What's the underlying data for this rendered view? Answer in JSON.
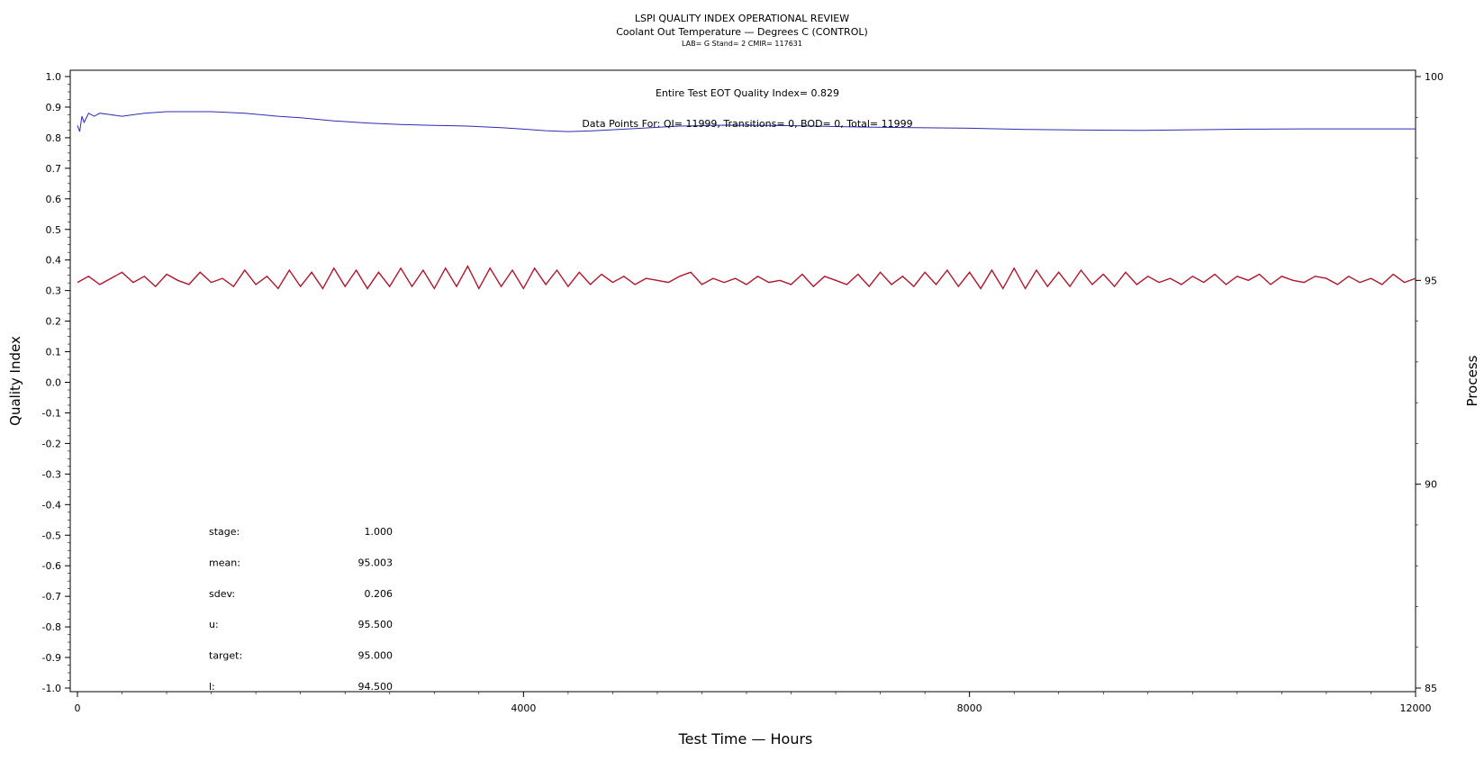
{
  "header": {
    "title": "LSPI QUALITY INDEX OPERATIONAL REVIEW",
    "subtitle": "Coolant Out Temperature — Degrees C (CONTROL)",
    "lab_line": "LAB= G Stand= 2 CMIR= 117631"
  },
  "chart_data": {
    "type": "line",
    "xlabel": "Test Time — Hours",
    "ylabel": "Quality Index",
    "y2label": "Process",
    "xlim": [
      0,
      12000
    ],
    "ylim": [
      -1.0,
      1.0
    ],
    "y2lim": [
      85,
      100
    ],
    "x_ticks": [
      "0",
      "4000",
      "8000",
      "12000"
    ],
    "y_ticks": [
      "1.0",
      "0.9",
      "0.8",
      "0.7",
      "0.6",
      "0.5",
      "0.4",
      "0.3",
      "0.2",
      "0.1",
      "0.0",
      "-0.1",
      "-0.2",
      "-0.3",
      "-0.4",
      "-0.5",
      "-0.6",
      "-0.7",
      "-0.8",
      "-0.9",
      "-1.0"
    ],
    "y2_ticks": [
      "100",
      "95",
      "90",
      "85"
    ],
    "annotations": {
      "eot_index": "Entire Test EOT Quality Index=    0.829",
      "data_points": "Data Points For: QI= 11999, Transitions=      0, BOD=      0, Total= 11999"
    },
    "stats": [
      {
        "label": "stage:",
        "value": "1.000"
      },
      {
        "label": "mean:",
        "value": "95.003"
      },
      {
        "label": "sdev:",
        "value": "0.206"
      },
      {
        "label": "u:",
        "value": "95.500"
      },
      {
        "label": "target:",
        "value": "95.000"
      },
      {
        "label": "l:",
        "value": "94.500"
      }
    ],
    "series": [
      {
        "axis": "left",
        "color": "#2c2cb4",
        "x": [
          0,
          20,
          40,
          60,
          100,
          150,
          200,
          300,
          400,
          600,
          800,
          1000,
          1200,
          1500,
          1800,
          2000,
          2300,
          2600,
          2900,
          3200,
          3500,
          3800,
          4000,
          4200,
          4400,
          4600,
          5000,
          5400,
          5800,
          6200,
          6600,
          7000,
          7500,
          8000,
          8500,
          9000,
          9500,
          10000,
          10500,
          11000,
          11500,
          12000
        ],
        "y": [
          0.84,
          0.82,
          0.87,
          0.85,
          0.88,
          0.87,
          0.88,
          0.875,
          0.87,
          0.88,
          0.885,
          0.885,
          0.885,
          0.88,
          0.87,
          0.865,
          0.855,
          0.848,
          0.843,
          0.84,
          0.838,
          0.833,
          0.828,
          0.823,
          0.82,
          0.822,
          0.83,
          0.838,
          0.841,
          0.84,
          0.838,
          0.835,
          0.833,
          0.831,
          0.827,
          0.825,
          0.824,
          0.826,
          0.828,
          0.829,
          0.829,
          0.829
        ]
      },
      {
        "axis": "right",
        "color": "#b0152a",
        "x": [
          0,
          100,
          200,
          300,
          400,
          500,
          600,
          700,
          800,
          900,
          1000,
          1100,
          1200,
          1300,
          1400,
          1500,
          1600,
          1700,
          1800,
          1900,
          2000,
          2100,
          2200,
          2300,
          2400,
          2500,
          2600,
          2700,
          2800,
          2900,
          3000,
          3100,
          3200,
          3300,
          3400,
          3500,
          3600,
          3700,
          3800,
          3900,
          4000,
          4100,
          4200,
          4300,
          4400,
          4500,
          4600,
          4700,
          4800,
          4900,
          5000,
          5100,
          5200,
          5300,
          5400,
          5500,
          5600,
          5700,
          5800,
          5900,
          6000,
          6100,
          6200,
          6300,
          6400,
          6500,
          6600,
          6700,
          6800,
          6900,
          7000,
          7100,
          7200,
          7300,
          7400,
          7500,
          7600,
          7700,
          7800,
          7900,
          8000,
          8100,
          8200,
          8300,
          8400,
          8500,
          8600,
          8700,
          8800,
          8900,
          9000,
          9100,
          9200,
          9300,
          9400,
          9500,
          9600,
          9700,
          9800,
          9900,
          10000,
          10100,
          10200,
          10300,
          10400,
          10500,
          10600,
          10700,
          10800,
          10900,
          11000,
          11100,
          11200,
          11300,
          11400,
          11500,
          11600,
          11700,
          11800,
          11900,
          12000
        ],
        "y": [
          94.95,
          95.1,
          94.9,
          95.05,
          95.2,
          94.95,
          95.1,
          94.85,
          95.15,
          95.0,
          94.9,
          95.2,
          94.95,
          95.05,
          94.85,
          95.25,
          94.9,
          95.1,
          94.8,
          95.25,
          94.85,
          95.2,
          94.8,
          95.3,
          94.85,
          95.25,
          94.8,
          95.2,
          94.85,
          95.3,
          94.85,
          95.25,
          94.8,
          95.3,
          94.85,
          95.35,
          94.8,
          95.3,
          94.85,
          95.25,
          94.8,
          95.3,
          94.9,
          95.25,
          94.85,
          95.2,
          94.9,
          95.15,
          94.95,
          95.1,
          94.9,
          95.05,
          95.0,
          94.95,
          95.1,
          95.2,
          94.9,
          95.05,
          94.95,
          95.05,
          94.9,
          95.1,
          94.95,
          95.0,
          94.9,
          95.15,
          94.85,
          95.1,
          95.0,
          94.9,
          95.15,
          94.85,
          95.2,
          94.9,
          95.1,
          94.85,
          95.2,
          94.9,
          95.25,
          94.85,
          95.2,
          94.8,
          95.25,
          94.8,
          95.3,
          94.8,
          95.25,
          94.85,
          95.2,
          94.85,
          95.25,
          94.9,
          95.15,
          94.85,
          95.2,
          94.9,
          95.1,
          94.95,
          95.05,
          94.9,
          95.1,
          94.95,
          95.15,
          94.9,
          95.1,
          95.0,
          95.15,
          94.9,
          95.1,
          95.0,
          94.95,
          95.1,
          95.05,
          94.9,
          95.1,
          94.95,
          95.05,
          94.9,
          95.15,
          94.95,
          95.05
        ]
      }
    ]
  }
}
